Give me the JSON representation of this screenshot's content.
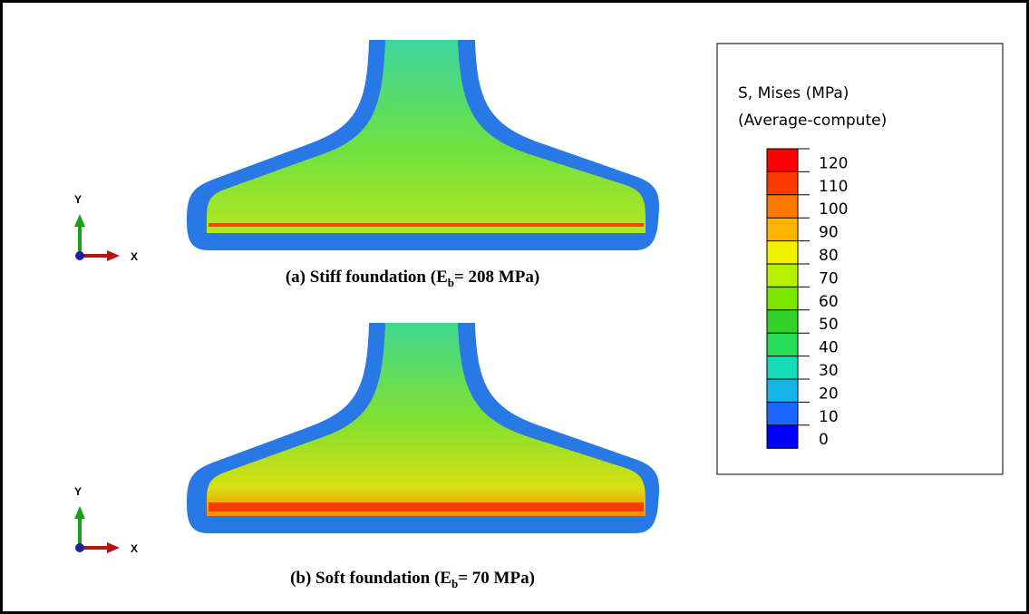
{
  "legend": {
    "title": "S, Mises (MPa)",
    "subtitle": "(Average-compute)",
    "levels": [
      "120",
      "110",
      "100",
      "90",
      "80",
      "70",
      "60",
      "50",
      "40",
      "30",
      "20",
      "10",
      "0"
    ],
    "colors": [
      "#ff0000",
      "#ff3a00",
      "#ff7800",
      "#ffb400",
      "#f2f200",
      "#b4f000",
      "#78e600",
      "#32d228",
      "#28dc5a",
      "#14dcb4",
      "#14b4e6",
      "#1e64ff",
      "#0000ff"
    ]
  },
  "panels": [
    {
      "caption": {
        "prefix": "(a)  Stiff foundation (E",
        "subscript": "b",
        "suffix": "= 208 MPa)"
      },
      "axes": {
        "y": "Y",
        "x": "X"
      }
    },
    {
      "caption": {
        "prefix": "(b) Soft foundation (E",
        "subscript": "b",
        "suffix": "= 70 MPa)"
      },
      "axes": {
        "y": "Y",
        "x": "X"
      }
    }
  ]
}
